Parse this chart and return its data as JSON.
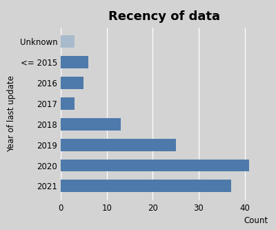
{
  "title": "Recency of data",
  "xlabel": "Count",
  "ylabel": "Year of last update",
  "categories": [
    "2021",
    "2020",
    "2019",
    "2018",
    "2017",
    "2016",
    "<= 2015",
    "Unknown"
  ],
  "values": [
    37,
    41,
    25,
    13,
    3,
    5,
    6,
    3
  ],
  "bar_colors": [
    "#4d7aaa",
    "#4d7aaa",
    "#4d7aaa",
    "#4d7aaa",
    "#4d7aaa",
    "#4d7aaa",
    "#4d7aaa",
    "#a8bbcc"
  ],
  "xlim": [
    0,
    45
  ],
  "xticks": [
    0,
    10,
    20,
    30,
    40
  ],
  "background_color": "#d3d3d3",
  "title_fontsize": 13,
  "label_fontsize": 8.5,
  "tick_fontsize": 8.5,
  "bar_height": 0.6
}
